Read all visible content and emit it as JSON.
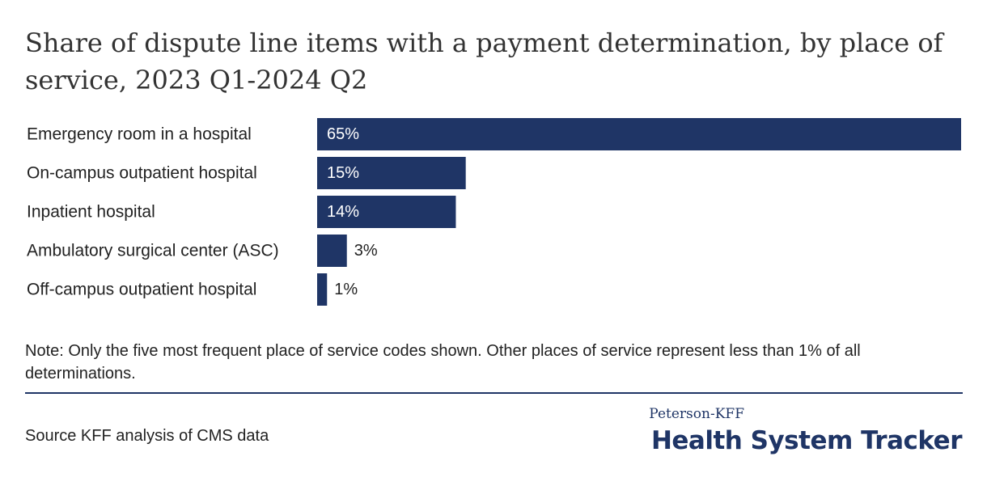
{
  "chart_data": {
    "type": "bar",
    "orientation": "horizontal",
    "title": "Share of dispute line items with a payment determination, by place of service, 2023 Q1-2024 Q2",
    "categories": [
      "Emergency room in a hospital",
      "On-campus outpatient hospital",
      "Inpatient hospital",
      "Ambulatory surgical center (ASC)",
      "Off-campus outpatient hospital"
    ],
    "values": [
      65,
      15,
      14,
      3,
      1
    ],
    "value_labels": [
      "65%",
      "15%",
      "14%",
      "3%",
      "1%"
    ],
    "unit": "%",
    "xlabel": "",
    "ylabel": "",
    "xlim": [
      0,
      65
    ],
    "grid": false,
    "legend": "none",
    "bar_color": "#1f3566"
  },
  "note": "Note: Only the five most frequent place of service codes shown. Other places of service represent less than 1% of all determinations.",
  "source": "Source KFF analysis of CMS data",
  "brand": {
    "top": "Peterson-KFF",
    "main": "Health System Tracker"
  },
  "colors": {
    "accent": "#1f3566"
  }
}
